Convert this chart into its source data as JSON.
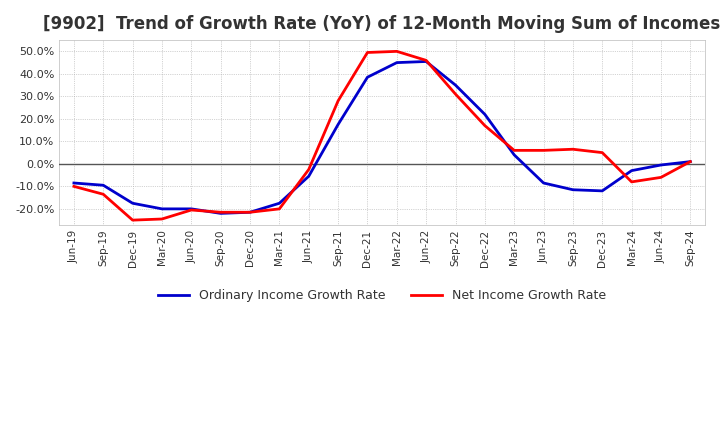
{
  "title": "[9902]  Trend of Growth Rate (YoY) of 12-Month Moving Sum of Incomes",
  "title_fontsize": 12,
  "ylim": [
    -0.27,
    0.55
  ],
  "yticks": [
    -0.2,
    -0.1,
    0.0,
    0.1,
    0.2,
    0.3,
    0.4,
    0.5
  ],
  "background_color": "#ffffff",
  "grid_color": "#aaaaaa",
  "line_color_ordinary": "#0000cc",
  "line_color_net": "#ff0000",
  "zero_line_color": "#555555",
  "legend_ordinary": "Ordinary Income Growth Rate",
  "legend_net": "Net Income Growth Rate",
  "x_labels": [
    "Jun-19",
    "Sep-19",
    "Dec-19",
    "Mar-20",
    "Jun-20",
    "Sep-20",
    "Dec-20",
    "Mar-21",
    "Jun-21",
    "Sep-21",
    "Dec-21",
    "Mar-22",
    "Jun-22",
    "Sep-22",
    "Dec-22",
    "Mar-23",
    "Jun-23",
    "Sep-23",
    "Dec-23",
    "Mar-24",
    "Jun-24",
    "Sep-24"
  ],
  "ordinary_income_growth": [
    -0.085,
    -0.095,
    -0.175,
    -0.2,
    -0.2,
    -0.22,
    -0.215,
    -0.175,
    -0.055,
    0.175,
    0.385,
    0.45,
    0.455,
    0.35,
    0.22,
    0.04,
    -0.085,
    -0.115,
    -0.12,
    -0.03,
    -0.005,
    0.01
  ],
  "net_income_growth": [
    -0.1,
    -0.135,
    -0.25,
    -0.245,
    -0.205,
    -0.215,
    -0.215,
    -0.2,
    -0.025,
    0.28,
    0.495,
    0.5,
    0.46,
    0.31,
    0.17,
    0.06,
    0.06,
    0.065,
    0.05,
    -0.08,
    -0.06,
    0.01
  ]
}
